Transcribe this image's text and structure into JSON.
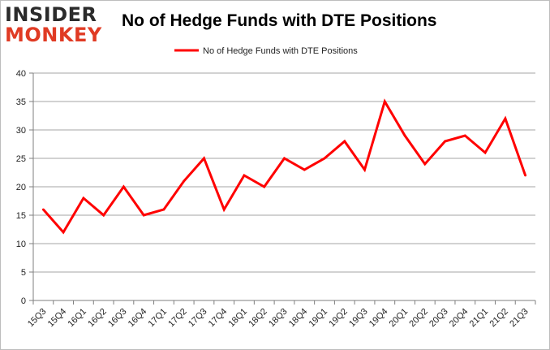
{
  "brand": {
    "line1": "INSIDER",
    "line2": "MONKEY"
  },
  "colors": {
    "line": "#ff0000",
    "grid": "#a6a6a6",
    "axis": "#7f7f7f",
    "brand_red": "#e03b24"
  },
  "chart_data": {
    "type": "line",
    "title": "No of Hedge Funds with DTE Positions",
    "xlabel": "",
    "ylabel": "",
    "ylim": [
      0,
      40
    ],
    "yticks": [
      0,
      5,
      10,
      15,
      20,
      25,
      30,
      35,
      40
    ],
    "grid": true,
    "legend_placement": "top-center",
    "categories": [
      "15Q3",
      "15Q4",
      "16Q1",
      "16Q2",
      "16Q3",
      "16Q4",
      "17Q1",
      "17Q2",
      "17Q3",
      "17Q4",
      "18Q1",
      "18Q2",
      "18Q3",
      "18Q4",
      "19Q1",
      "19Q2",
      "19Q3",
      "19Q4",
      "20Q1",
      "20Q2",
      "20Q3",
      "20Q4",
      "21Q1",
      "21Q2",
      "21Q3"
    ],
    "series": [
      {
        "name": "No of Hedge Funds with DTE Positions",
        "values": [
          16,
          12,
          18,
          15,
          20,
          15,
          16,
          21,
          25,
          16,
          22,
          20,
          25,
          23,
          25,
          28,
          23,
          35,
          29,
          24,
          28,
          29,
          26,
          32,
          22
        ]
      }
    ]
  }
}
